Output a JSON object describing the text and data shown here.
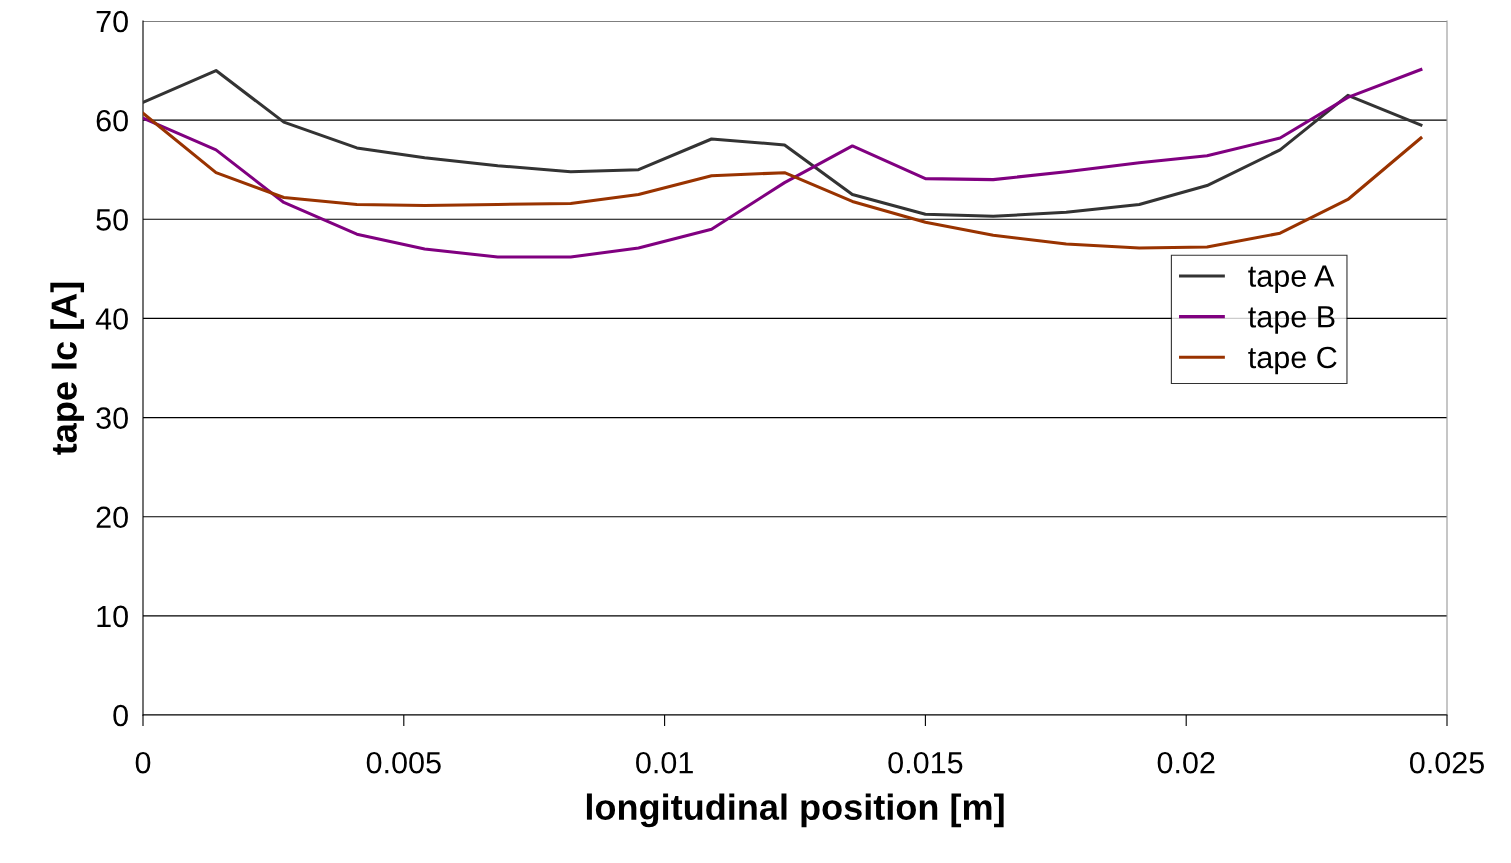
{
  "chart_data": {
    "type": "line",
    "xlabel": "longitudinal position [m]",
    "ylabel": "tape Ic [A]",
    "x": [
      0,
      0.0014,
      0.0027,
      0.0041,
      0.0054,
      0.0068,
      0.0082,
      0.0095,
      0.0109,
      0.0123,
      0.0136,
      0.015,
      0.0163,
      0.0177,
      0.0191,
      0.0204,
      0.0218,
      0.0231,
      0.0245
    ],
    "series": [
      {
        "name": "tape A",
        "color": "#333333",
        "values": [
          61.8,
          65.0,
          59.8,
          57.2,
          56.2,
          55.4,
          54.8,
          55.0,
          58.1,
          57.5,
          52.5,
          50.5,
          50.3,
          50.7,
          51.5,
          53.4,
          57.0,
          62.5,
          59.5
        ]
      },
      {
        "name": "tape B",
        "color": "#800080",
        "values": [
          60.2,
          57.0,
          51.7,
          48.5,
          47.0,
          46.2,
          46.2,
          47.1,
          49.0,
          53.7,
          57.4,
          54.1,
          54.0,
          54.8,
          55.7,
          56.4,
          58.2,
          62.3,
          65.1
        ]
      },
      {
        "name": "tape C",
        "color": "#993300",
        "values": [
          60.7,
          54.7,
          52.2,
          51.5,
          51.4,
          51.5,
          51.6,
          52.5,
          54.4,
          54.7,
          51.8,
          49.7,
          48.4,
          47.5,
          47.1,
          47.2,
          48.6,
          52.0,
          58.2
        ]
      }
    ],
    "xlim": [
      0,
      0.025
    ],
    "xticks": [
      0,
      0.005,
      0.01,
      0.015,
      0.02,
      0.025
    ],
    "ylim": [
      0,
      70
    ],
    "yticks": [
      0,
      10,
      20,
      30,
      40,
      50,
      60,
      70
    ],
    "grid": "y",
    "legend": "right",
    "marker": "none",
    "line_style": "solid"
  }
}
